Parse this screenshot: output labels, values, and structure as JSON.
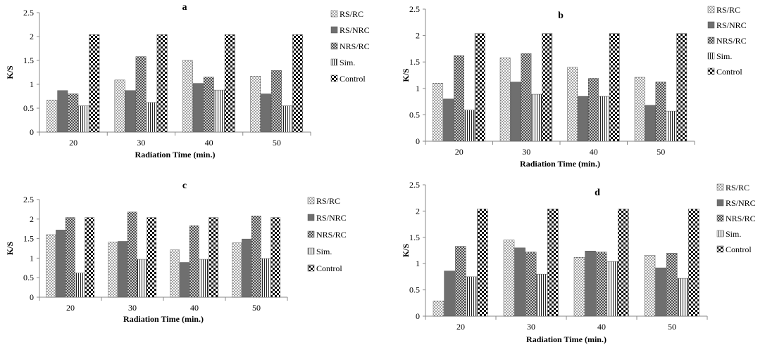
{
  "figure": {
    "series": [
      {
        "name": "RS/RC",
        "pattern": "dots"
      },
      {
        "name": "RS/NRC",
        "pattern": "solid"
      },
      {
        "name": "NRS/RC",
        "pattern": "crosshatch"
      },
      {
        "name": "Sim.",
        "pattern": "vlines"
      },
      {
        "name": "Control",
        "pattern": "checker"
      }
    ],
    "colors": {
      "dark": "#111111",
      "gray": "#6f6f6f",
      "light": "#ffffff"
    }
  },
  "chart_data": [
    {
      "type": "bar",
      "title": "a",
      "xlabel": "Radiation  Time (min.)",
      "ylabel": "K/S",
      "categories": [
        "20",
        "30",
        "40",
        "50"
      ],
      "yticks": [
        "0",
        "0.5",
        "1",
        "1.5",
        "2",
        "2.5"
      ],
      "ylim": [
        0,
        2.5
      ],
      "legend_position": "right",
      "series": [
        {
          "name": "RS/RC",
          "values": [
            0.67,
            1.09,
            1.5,
            1.17
          ]
        },
        {
          "name": "RS/NRC",
          "values": [
            0.87,
            0.87,
            1.02,
            0.8
          ]
        },
        {
          "name": "NRS/RC",
          "values": [
            0.8,
            1.58,
            1.15,
            1.29
          ]
        },
        {
          "name": "Sim.",
          "values": [
            0.55,
            0.62,
            0.88,
            0.55
          ]
        },
        {
          "name": "Control",
          "values": [
            2.04,
            2.04,
            2.04,
            2.04
          ]
        }
      ]
    },
    {
      "type": "bar",
      "title": "b",
      "xlabel": "Radiation  Time (min.)",
      "ylabel": "K/S",
      "categories": [
        "20",
        "30",
        "40",
        "50"
      ],
      "yticks": [
        "0",
        "0.5",
        "1",
        "1.5",
        "2",
        "2.5"
      ],
      "ylim": [
        0,
        2.5
      ],
      "legend_position": "right",
      "series": [
        {
          "name": "RS/RC",
          "values": [
            1.1,
            1.58,
            1.4,
            1.21
          ]
        },
        {
          "name": "RS/NRC",
          "values": [
            0.8,
            1.12,
            0.85,
            0.68
          ]
        },
        {
          "name": "NRS/RC",
          "values": [
            1.62,
            1.66,
            1.19,
            1.12
          ]
        },
        {
          "name": "Sim.",
          "values": [
            0.59,
            0.89,
            0.85,
            0.57
          ]
        },
        {
          "name": "Control",
          "values": [
            2.04,
            2.04,
            2.04,
            2.04
          ]
        }
      ]
    },
    {
      "type": "bar",
      "title": "c",
      "xlabel": "Radiation  Time (min.)",
      "ylabel": "K/S",
      "categories": [
        "20",
        "30",
        "40",
        "50"
      ],
      "yticks": [
        "0",
        "0.5",
        "1",
        "1.5",
        "2",
        "2.5"
      ],
      "ylim": [
        0,
        2.5
      ],
      "legend_position": "right",
      "series": [
        {
          "name": "RS/RC",
          "values": [
            1.6,
            1.41,
            1.21,
            1.39
          ]
        },
        {
          "name": "RS/NRC",
          "values": [
            1.72,
            1.43,
            0.89,
            1.49
          ]
        },
        {
          "name": "NRS/RC",
          "values": [
            2.04,
            2.18,
            1.83,
            2.08
          ]
        },
        {
          "name": "Sim.",
          "values": [
            0.62,
            0.97,
            0.97,
            0.99
          ]
        },
        {
          "name": "Control",
          "values": [
            2.04,
            2.04,
            2.04,
            2.04
          ]
        }
      ]
    },
    {
      "type": "bar",
      "title": "d",
      "xlabel": "Radiation  Time (min.)",
      "ylabel": "K/S",
      "categories": [
        "20",
        "30",
        "40",
        "50"
      ],
      "yticks": [
        "0",
        "0.5",
        "1",
        "1.5",
        "2",
        "2.5"
      ],
      "ylim": [
        0,
        2.5
      ],
      "legend_position": "right",
      "series": [
        {
          "name": "RS/RC",
          "values": [
            0.29,
            1.45,
            1.12,
            1.16
          ]
        },
        {
          "name": "RS/NRC",
          "values": [
            0.86,
            1.3,
            1.24,
            0.92
          ]
        },
        {
          "name": "NRS/RC",
          "values": [
            1.33,
            1.22,
            1.22,
            1.2
          ]
        },
        {
          "name": "Sim.",
          "values": [
            0.75,
            0.8,
            1.04,
            0.72
          ]
        },
        {
          "name": "Control",
          "values": [
            2.04,
            2.04,
            2.04,
            2.04
          ]
        }
      ]
    }
  ]
}
